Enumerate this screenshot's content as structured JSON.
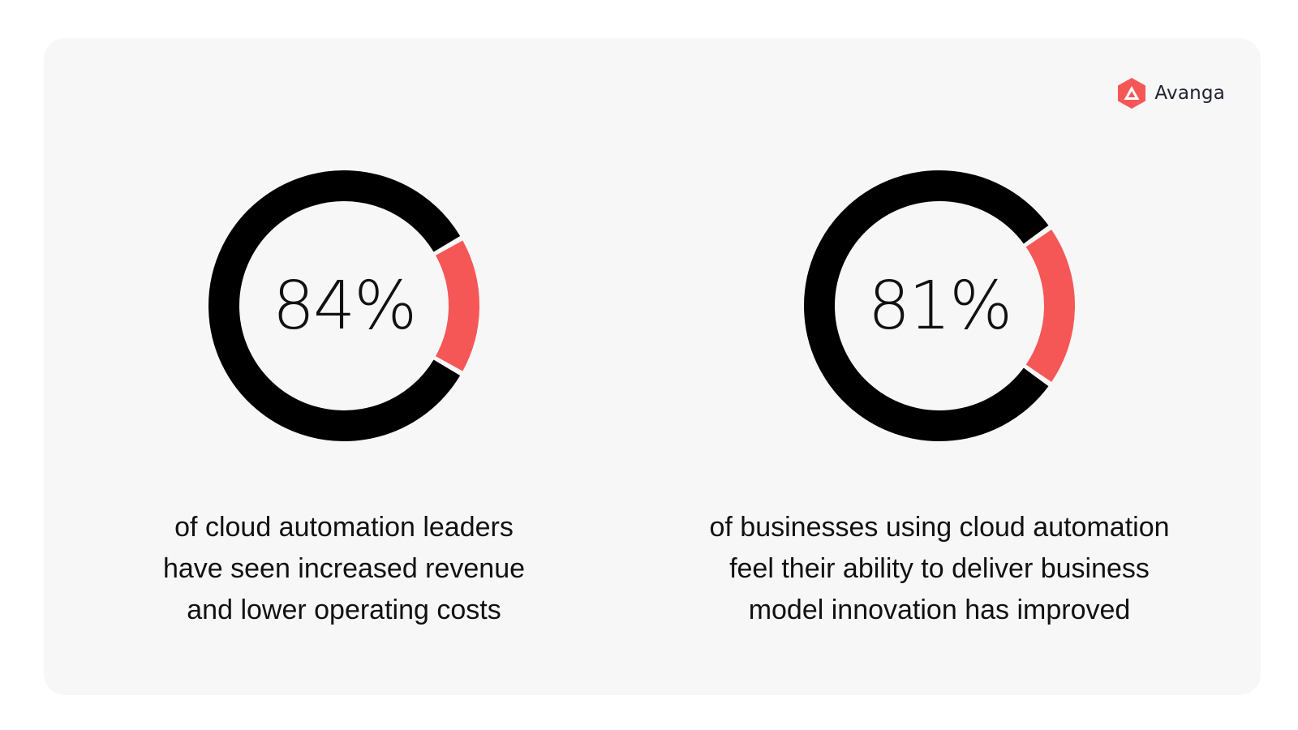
{
  "logo": {
    "text": "Avanga",
    "accent": "#f55757"
  },
  "colors": {
    "main": "#000000",
    "highlight": "#f55757",
    "background": "#f7f7f7"
  },
  "stats": [
    {
      "value": "84%",
      "caption": "of cloud automation leaders\nhave seen increased revenue\nand lower operating costs"
    },
    {
      "value": "81%",
      "caption": "of businesses using cloud automation\nfeel their ability to deliver business\nmodel innovation has improved"
    }
  ],
  "chart_data": [
    {
      "type": "pie",
      "values": [
        84,
        16
      ],
      "colors": [
        "#000000",
        "#f55757"
      ],
      "label": "84%"
    },
    {
      "type": "pie",
      "values": [
        81,
        19
      ],
      "colors": [
        "#000000",
        "#f55757"
      ],
      "label": "81%"
    }
  ]
}
